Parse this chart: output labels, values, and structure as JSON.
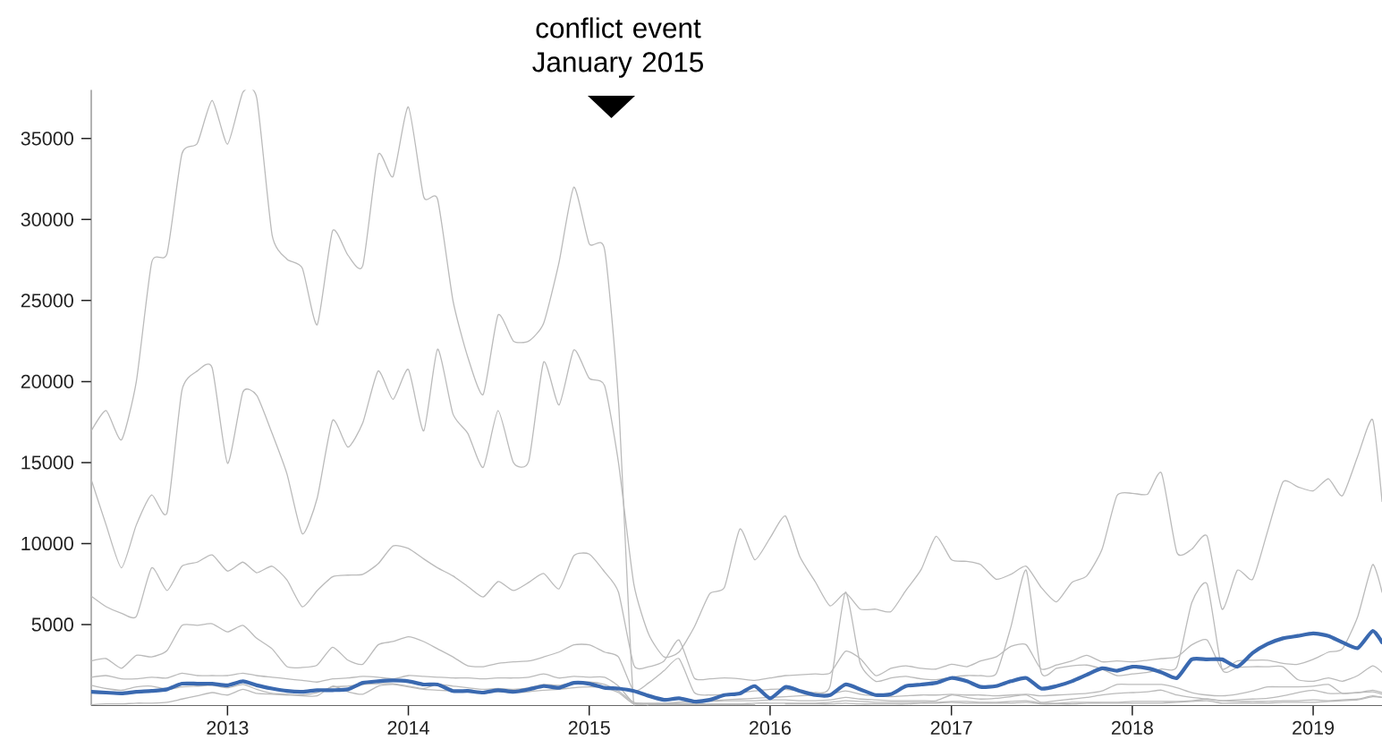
{
  "chart_data": {
    "type": "line",
    "x": [
      "2012-04",
      "2012-05",
      "2012-06",
      "2012-07",
      "2012-08",
      "2012-09",
      "2012-10",
      "2012-11",
      "2012-12",
      "2013-01",
      "2013-02",
      "2013-03",
      "2013-04",
      "2013-05",
      "2013-06",
      "2013-07",
      "2013-08",
      "2013-09",
      "2013-10",
      "2013-11",
      "2013-12",
      "2014-01",
      "2014-02",
      "2014-03",
      "2014-04",
      "2014-05",
      "2014-06",
      "2014-07",
      "2014-08",
      "2014-09",
      "2014-10",
      "2014-11",
      "2014-12",
      "2015-01",
      "2015-02",
      "2015-03",
      "2015-04",
      "2015-05",
      "2015-06",
      "2015-07",
      "2015-08",
      "2015-09",
      "2015-10",
      "2015-11",
      "2015-12",
      "2016-01",
      "2016-02",
      "2016-03",
      "2016-04",
      "2016-05",
      "2016-06",
      "2016-07",
      "2016-08",
      "2016-09",
      "2016-10",
      "2016-11",
      "2016-12",
      "2017-01",
      "2017-02",
      "2017-03",
      "2017-04",
      "2017-05",
      "2017-06",
      "2017-07",
      "2017-08",
      "2017-09",
      "2017-10",
      "2017-11",
      "2017-12",
      "2018-01",
      "2018-02",
      "2018-03",
      "2018-04",
      "2018-05",
      "2018-06",
      "2018-07",
      "2018-08",
      "2018-09",
      "2018-10",
      "2018-11",
      "2018-12",
      "2019-01",
      "2019-02",
      "2019-03",
      "2019-04",
      "2019-05",
      "2019-05-20"
    ],
    "xlim": [
      "2012-04",
      "2019-05-20"
    ],
    "xticks": [
      "2013",
      "2014",
      "2015",
      "2016",
      "2017",
      "2018",
      "2019"
    ],
    "ylim": [
      0,
      38000
    ],
    "yticks": [
      5000,
      10000,
      15000,
      20000,
      25000,
      30000,
      35000
    ],
    "series": [
      {
        "color": "#bbbbbb",
        "values": [
          16950,
          18200,
          16400,
          20000,
          27350,
          27900,
          34050,
          34700,
          37350,
          34650,
          37850,
          37500,
          29050,
          27550,
          27000,
          23500,
          29300,
          27800,
          27150,
          34000,
          32650,
          36950,
          31400,
          31250,
          25000,
          21500,
          19200,
          24100,
          22500,
          22500,
          23600,
          27350,
          32000,
          28500,
          28150,
          18800,
          50,
          50,
          50,
          50,
          50,
          50,
          50,
          50,
          50,
          null,
          100,
          100,
          100,
          100,
          150,
          100,
          100,
          100,
          100,
          150,
          150,
          200,
          150,
          150,
          150,
          150,
          200,
          100,
          100,
          100,
          150,
          150,
          150,
          150,
          150,
          150,
          200,
          250,
          300,
          150,
          150,
          150,
          150,
          200,
          200,
          200,
          250,
          300,
          350,
          550,
          500
        ]
      },
      {
        "color": "#bbbbbb",
        "values": [
          13950,
          11150,
          8500,
          11150,
          13000,
          11900,
          19450,
          20650,
          20850,
          14950,
          19350,
          19150,
          16800,
          14300,
          10600,
          12800,
          17600,
          15950,
          17450,
          20650,
          18900,
          20750,
          16950,
          22000,
          18000,
          16800,
          14700,
          18200,
          15000,
          15100,
          21200,
          18550,
          21950,
          20200,
          19750,
          15000,
          7500,
          4400,
          3000,
          3300,
          4850,
          6900,
          7300,
          10900,
          9000,
          10350,
          11700,
          9200,
          7650,
          6150,
          6950,
          5950,
          5950,
          5800,
          7100,
          8400,
          10450,
          9000,
          8900,
          8700,
          7800,
          8100,
          8600,
          7300,
          6400,
          7600,
          8000,
          9650,
          12950,
          13100,
          13050,
          14350,
          9450,
          9650,
          10450,
          5950,
          8350,
          7800,
          10750,
          13800,
          13500,
          13250,
          14000,
          12950,
          15400,
          17650,
          12600
        ]
      },
      {
        "color": "#bbbbbb",
        "values": [
          6750,
          6100,
          5700,
          5500,
          8500,
          7100,
          8600,
          8850,
          9300,
          8300,
          8850,
          8200,
          8600,
          7750,
          6100,
          7100,
          7950,
          8050,
          8100,
          8750,
          9850,
          9700,
          9050,
          8500,
          8000,
          7350,
          6700,
          7650,
          7100,
          7600,
          8150,
          7200,
          9250,
          9350,
          8250,
          7000,
          2500,
          2400,
          2750,
          4050,
          1700,
          1650,
          1700,
          1650,
          1550,
          1700,
          1850,
          1900,
          1950,
          2000,
          3350,
          2900,
          1850,
          2300,
          2450,
          2300,
          2250,
          2550,
          2400,
          2750,
          3000,
          3650,
          3750,
          2250,
          2500,
          2750,
          3100,
          2700,
          2750,
          2700,
          2800,
          2900,
          3000,
          3750,
          4050,
          2250,
          2750,
          2800,
          2800,
          2600,
          2550,
          2850,
          3300,
          3500,
          5500,
          8700,
          7000
        ]
      },
      {
        "color": "#bbbbbb",
        "values": [
          2750,
          2900,
          2300,
          3100,
          3000,
          3400,
          4950,
          4950,
          5050,
          4550,
          4950,
          4150,
          3500,
          2400,
          2350,
          2500,
          3600,
          2800,
          2550,
          3750,
          3950,
          4250,
          3950,
          3500,
          3000,
          2450,
          2400,
          2600,
          2700,
          2750,
          3000,
          3300,
          3750,
          3750,
          3300,
          3000,
          900,
          1400,
          2150,
          2900,
          800,
          650,
          700,
          800,
          900,
          1000,
          1000,
          900,
          800,
          1200,
          7000,
          2600,
          1500,
          1700,
          1800,
          1650,
          1600,
          1750,
          1850,
          1850,
          1950,
          4850,
          8350,
          2050,
          2300,
          2450,
          2500,
          2250,
          1850,
          1950,
          2050,
          2250,
          2400,
          6350,
          7500,
          2250,
          2350,
          2400,
          2400,
          2400,
          1600,
          1500,
          1700,
          1500,
          1850,
          2450,
          2050
        ]
      },
      {
        "color": "#bbbbbb",
        "values": [
          1750,
          1850,
          1650,
          1650,
          1750,
          1700,
          2000,
          1850,
          1850,
          1850,
          2000,
          1850,
          1750,
          1650,
          1550,
          1450,
          1650,
          1700,
          1800,
          1750,
          1650,
          1850,
          1800,
          1750,
          1700,
          1700,
          1650,
          1700,
          1700,
          1750,
          1950,
          1700,
          1800,
          1750,
          1750,
          1200,
          150,
          100,
          100,
          200,
          300,
          300,
          350,
          400,
          450,
          500,
          550,
          600,
          650,
          700,
          900,
          700,
          600,
          550,
          600,
          650,
          650,
          700,
          650,
          650,
          600,
          650,
          700,
          600,
          650,
          700,
          750,
          900,
          1300,
          1300,
          1300,
          1300,
          1100,
          800,
          650,
          600,
          700,
          900,
          1150,
          1150,
          1150,
          1200,
          1300,
          750,
          800,
          950,
          800
        ]
      },
      {
        "color": "#bbbbbb",
        "values": [
          1250,
          1050,
          950,
          1150,
          1200,
          1000,
          1150,
          1200,
          1250,
          1100,
          1300,
          1000,
          750,
          700,
          650,
          800,
          1150,
          1200,
          1300,
          1350,
          1350,
          1200,
          1050,
          1300,
          1200,
          1100,
          1000,
          1050,
          1000,
          1100,
          1300,
          1250,
          1400,
          1450,
          1300,
          900,
          200,
          150,
          150,
          200,
          200,
          250,
          300,
          300,
          300,
          350,
          350,
          300,
          300,
          350,
          500,
          400,
          350,
          300,
          300,
          300,
          300,
          650,
          500,
          400,
          450,
          550,
          650,
          200,
          300,
          400,
          500,
          650,
          750,
          800,
          850,
          950,
          650,
          500,
          400,
          300,
          350,
          400,
          450,
          600,
          800,
          950,
          750,
          750,
          800,
          850,
          700
        ]
      },
      {
        "color": "#bbbbbb",
        "values": [
          50,
          100,
          100,
          150,
          150,
          200,
          400,
          600,
          800,
          650,
          1000,
          750,
          700,
          650,
          600,
          600,
          1200,
          850,
          700,
          1200,
          1300,
          1150,
          1000,
          950,
          900,
          850,
          800,
          850,
          800,
          850,
          950,
          1000,
          1100,
          1150,
          1100,
          800,
          100,
          100,
          100,
          100,
          100,
          100,
          100,
          100,
          150,
          150,
          150,
          150,
          150,
          200,
          300,
          250,
          200,
          200,
          200,
          200,
          200,
          250,
          250,
          200,
          200,
          250,
          300,
          150,
          150,
          200,
          200,
          200,
          200,
          250,
          250,
          250,
          250,
          300,
          400,
          300,
          250,
          250,
          250,
          300,
          300,
          350,
          300,
          350,
          400,
          600,
          500
        ]
      },
      {
        "color": "#3a69b0",
        "values": [
          850,
          800,
          750,
          850,
          900,
          1000,
          1350,
          1350,
          1350,
          1250,
          1500,
          1250,
          1050,
          900,
          850,
          950,
          950,
          1000,
          1400,
          1500,
          1550,
          1500,
          1300,
          1300,
          900,
          900,
          800,
          950,
          850,
          1000,
          1200,
          1100,
          1400,
          1350,
          1100,
          1050,
          900,
          600,
          350,
          450,
          250,
          350,
          650,
          750,
          1200,
          450,
          1150,
          900,
          650,
          650,
          1300,
          1000,
          650,
          700,
          1200,
          1300,
          1400,
          1700,
          1500,
          1150,
          1200,
          1500,
          1700,
          1050,
          1200,
          1500,
          1900,
          2300,
          2150,
          2400,
          2300,
          2050,
          1700,
          2850,
          2850,
          2850,
          2400,
          3250,
          3800,
          4150,
          4300,
          4450,
          4300,
          3900,
          3550,
          4600,
          3900
        ]
      }
    ],
    "annotations": [
      "conflict event January 2015"
    ]
  }
}
